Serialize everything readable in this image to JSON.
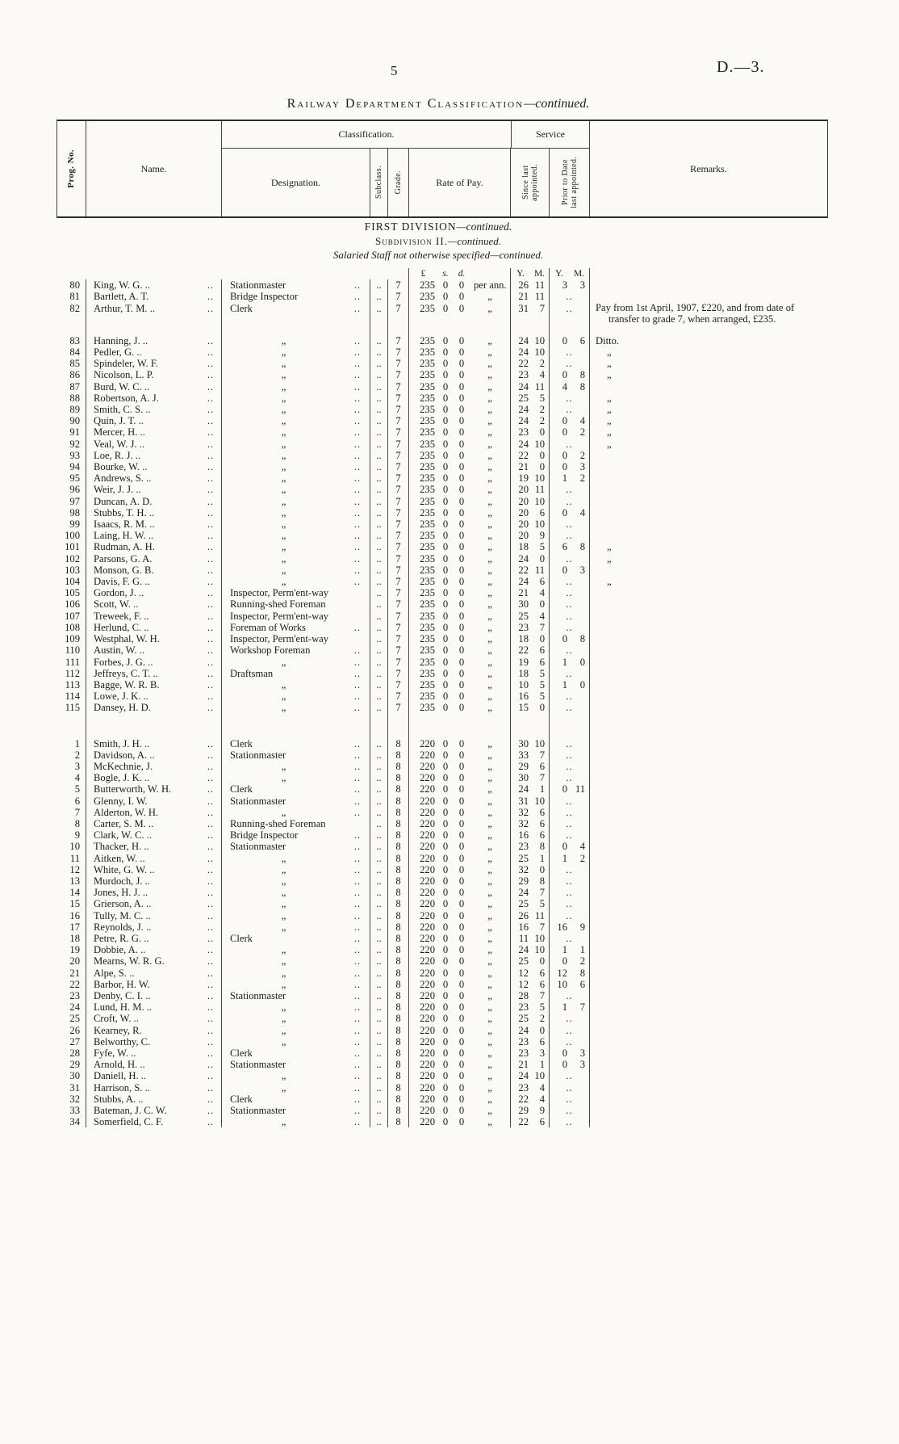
{
  "page": {
    "number": "5",
    "doc_ref": "D.—3.",
    "title_main": "Railway Department Classification",
    "title_continued": "—continued."
  },
  "table_header": {
    "prog_no": "Prog. No.",
    "name": "Name.",
    "classification": "Classification.",
    "designation": "Designation.",
    "subclass": "Subclass.",
    "grade": "Grade.",
    "rate_of_pay": "Rate of Pay.",
    "service": "Service",
    "since": "Since last appointed.",
    "prior": "Prior to Date last appointed.",
    "remarks": "Remarks."
  },
  "section": {
    "division": "FIRST DIVISION",
    "division_cont": "—continued.",
    "subdivision": "Subdivision II.",
    "subdivision_cont": "—continued.",
    "staff": "Salaried Staff not otherwise specified",
    "staff_cont": "—continued."
  },
  "units": {
    "pound": "£",
    "s": "s.",
    "d": "d.",
    "y": "Y.",
    "m": "M."
  },
  "colors": {
    "paper": "#fbfaf7",
    "ink": "#1c1c1c"
  },
  "rows_grade7": [
    {
      "prog": "80",
      "name": "King, W. G. ..",
      "designation": "Stationmaster",
      "grade": "7",
      "pay_pounds": "235",
      "pay_s": "0",
      "pay_d": "0",
      "per": "per ann.",
      "since": "26 11",
      "prior": "3 3",
      "remark": ""
    },
    {
      "prog": "81",
      "name": "Bartlett, A. T.",
      "designation": "Bridge Inspector",
      "grade": "7",
      "pay_pounds": "235",
      "pay_s": "0",
      "pay_d": "0",
      "per": "„",
      "since": "21 11",
      "prior": "..",
      "remark": ""
    },
    {
      "prog": "82",
      "name": "Arthur, T. M. ..",
      "designation": "Clerk",
      "grade": "7",
      "pay_pounds": "235",
      "pay_s": "0",
      "pay_d": "0",
      "per": "„",
      "since": "31 7",
      "prior": "..",
      "remark": "Pay from 1st April, 1907, £220, and from date of transfer to grade 7, when arranged, £235."
    },
    {
      "prog": "83",
      "name": "Hanning, J. ..",
      "designation": "„",
      "grade": "7",
      "pay_pounds": "235",
      "pay_s": "0",
      "pay_d": "0",
      "per": "„",
      "since": "24 10",
      "prior": "0 6",
      "remark": "Ditto."
    },
    {
      "prog": "84",
      "name": "Pedler, G. ..",
      "designation": "„",
      "grade": "7",
      "pay_pounds": "235",
      "pay_s": "0",
      "pay_d": "0",
      "per": "„",
      "since": "24 10",
      "prior": "..",
      "remark": "„"
    },
    {
      "prog": "85",
      "name": "Spindeler, W. F.",
      "designation": "„",
      "grade": "7",
      "pay_pounds": "235",
      "pay_s": "0",
      "pay_d": "0",
      "per": "„",
      "since": "22 2",
      "prior": "..",
      "remark": "„"
    },
    {
      "prog": "86",
      "name": "Nicolson, L. P.",
      "designation": "„",
      "grade": "7",
      "pay_pounds": "235",
      "pay_s": "0",
      "pay_d": "0",
      "per": "„",
      "since": "23 4",
      "prior": "0 8",
      "remark": "„"
    },
    {
      "prog": "87",
      "name": "Burd, W. C. ..",
      "designation": "„",
      "grade": "7",
      "pay_pounds": "235",
      "pay_s": "0",
      "pay_d": "0",
      "per": "„",
      "since": "24 11",
      "prior": "4 8",
      "remark": ""
    },
    {
      "prog": "88",
      "name": "Robertson, A. J.",
      "designation": "„",
      "grade": "7",
      "pay_pounds": "235",
      "pay_s": "0",
      "pay_d": "0",
      "per": "„",
      "since": "25 5",
      "prior": "..",
      "remark": "„"
    },
    {
      "prog": "89",
      "name": "Smith, C. S. ..",
      "designation": "„",
      "grade": "7",
      "pay_pounds": "235",
      "pay_s": "0",
      "pay_d": "0",
      "per": "„",
      "since": "24 2",
      "prior": "..",
      "remark": "„"
    },
    {
      "prog": "90",
      "name": "Quin, J. T. ..",
      "designation": "„",
      "grade": "7",
      "pay_pounds": "235",
      "pay_s": "0",
      "pay_d": "0",
      "per": "„",
      "since": "24 2",
      "prior": "0 4",
      "remark": "„"
    },
    {
      "prog": "91",
      "name": "Mercer, H. ..",
      "designation": "„",
      "grade": "7",
      "pay_pounds": "235",
      "pay_s": "0",
      "pay_d": "0",
      "per": "„",
      "since": "23 0",
      "prior": "0 2",
      "remark": "„"
    },
    {
      "prog": "92",
      "name": "Veal, W. J. ..",
      "designation": "„",
      "grade": "7",
      "pay_pounds": "235",
      "pay_s": "0",
      "pay_d": "0",
      "per": "„",
      "since": "24 10",
      "prior": "..",
      "remark": "„"
    },
    {
      "prog": "93",
      "name": "Loe, R. J. ..",
      "designation": "„",
      "grade": "7",
      "pay_pounds": "235",
      "pay_s": "0",
      "pay_d": "0",
      "per": "„",
      "since": "22 0",
      "prior": "0 2",
      "remark": ""
    },
    {
      "prog": "94",
      "name": "Bourke, W. ..",
      "designation": "„",
      "grade": "7",
      "pay_pounds": "235",
      "pay_s": "0",
      "pay_d": "0",
      "per": "„",
      "since": "21 0",
      "prior": "0 3",
      "remark": ""
    },
    {
      "prog": "95",
      "name": "Andrews, S. ..",
      "designation": "„",
      "grade": "7",
      "pay_pounds": "235",
      "pay_s": "0",
      "pay_d": "0",
      "per": "„",
      "since": "19 10",
      "prior": "1 2",
      "remark": ""
    },
    {
      "prog": "96",
      "name": "Weir, J. J. ..",
      "designation": "„",
      "grade": "7",
      "pay_pounds": "235",
      "pay_s": "0",
      "pay_d": "0",
      "per": "„",
      "since": "20 11",
      "prior": "..",
      "remark": ""
    },
    {
      "prog": "97",
      "name": "Duncan, A. D.",
      "designation": "„",
      "grade": "7",
      "pay_pounds": "235",
      "pay_s": "0",
      "pay_d": "0",
      "per": "„",
      "since": "20 10",
      "prior": "..",
      "remark": ""
    },
    {
      "prog": "98",
      "name": "Stubbs, T. H. ..",
      "designation": "„",
      "grade": "7",
      "pay_pounds": "235",
      "pay_s": "0",
      "pay_d": "0",
      "per": "„",
      "since": "20 6",
      "prior": "0 4",
      "remark": ""
    },
    {
      "prog": "99",
      "name": "Isaacs, R. M. ..",
      "designation": "„",
      "grade": "7",
      "pay_pounds": "235",
      "pay_s": "0",
      "pay_d": "0",
      "per": "„",
      "since": "20 10",
      "prior": "..",
      "remark": ""
    },
    {
      "prog": "100",
      "name": "Laing, H. W. ..",
      "designation": "„",
      "grade": "7",
      "pay_pounds": "235",
      "pay_s": "0",
      "pay_d": "0",
      "per": "„",
      "since": "20 9",
      "prior": "..",
      "remark": ""
    },
    {
      "prog": "101",
      "name": "Rudman, A. H.",
      "designation": "„",
      "grade": "7",
      "pay_pounds": "235",
      "pay_s": "0",
      "pay_d": "0",
      "per": "„",
      "since": "18 5",
      "prior": "6 8",
      "remark": "„"
    },
    {
      "prog": "102",
      "name": "Parsons, G. A.",
      "designation": "„",
      "grade": "7",
      "pay_pounds": "235",
      "pay_s": "0",
      "pay_d": "0",
      "per": "„",
      "since": "24 0",
      "prior": "..",
      "remark": "„"
    },
    {
      "prog": "103",
      "name": "Monson, G. B.",
      "designation": "„",
      "grade": "7",
      "pay_pounds": "235",
      "pay_s": "0",
      "pay_d": "0",
      "per": "„",
      "since": "22 11",
      "prior": "0 3",
      "remark": ""
    },
    {
      "prog": "104",
      "name": "Davis, F. G. ..",
      "designation": "„",
      "grade": "7",
      "pay_pounds": "235",
      "pay_s": "0",
      "pay_d": "0",
      "per": "„",
      "since": "24 6",
      "prior": "..",
      "remark": "„"
    },
    {
      "prog": "105",
      "name": "Gordon, J. ..",
      "designation": "Inspector, Perm'ent-way",
      "grade": "7",
      "pay_pounds": "235",
      "pay_s": "0",
      "pay_d": "0",
      "per": "„",
      "since": "21 4",
      "prior": "..",
      "remark": ""
    },
    {
      "prog": "106",
      "name": "Scott, W. ..",
      "designation": "Running-shed Foreman",
      "grade": "7",
      "pay_pounds": "235",
      "pay_s": "0",
      "pay_d": "0",
      "per": "„",
      "since": "30 0",
      "prior": "..",
      "remark": ""
    },
    {
      "prog": "107",
      "name": "Treweek, F. ..",
      "designation": "Inspector, Perm'ent-way",
      "grade": "7",
      "pay_pounds": "235",
      "pay_s": "0",
      "pay_d": "0",
      "per": "„",
      "since": "25 4",
      "prior": "..",
      "remark": ""
    },
    {
      "prog": "108",
      "name": "Herlund, C. ..",
      "designation": "Foreman of Works",
      "grade": "7",
      "pay_pounds": "235",
      "pay_s": "0",
      "pay_d": "0",
      "per": "„",
      "since": "23 7",
      "prior": "..",
      "remark": ""
    },
    {
      "prog": "109",
      "name": "Westphal, W. H.",
      "designation": "Inspector, Perm'ent-way",
      "grade": "7",
      "pay_pounds": "235",
      "pay_s": "0",
      "pay_d": "0",
      "per": "„",
      "since": "18 0",
      "prior": "0 8",
      "remark": ""
    },
    {
      "prog": "110",
      "name": "Austin, W. ..",
      "designation": "Workshop Foreman",
      "grade": "7",
      "pay_pounds": "235",
      "pay_s": "0",
      "pay_d": "0",
      "per": "„",
      "since": "22 6",
      "prior": "..",
      "remark": ""
    },
    {
      "prog": "111",
      "name": "Forbes, J. G. ..",
      "designation": "„",
      "grade": "7",
      "pay_pounds": "235",
      "pay_s": "0",
      "pay_d": "0",
      "per": "„",
      "since": "19 6",
      "prior": "1 0",
      "remark": ""
    },
    {
      "prog": "112",
      "name": "Jeffreys, C. T. ..",
      "designation": "Draftsman",
      "grade": "7",
      "pay_pounds": "235",
      "pay_s": "0",
      "pay_d": "0",
      "per": "„",
      "since": "18 5",
      "prior": "..",
      "remark": ""
    },
    {
      "prog": "113",
      "name": "Bagge, W. R. B.",
      "designation": "„",
      "grade": "7",
      "pay_pounds": "235",
      "pay_s": "0",
      "pay_d": "0",
      "per": "„",
      "since": "10 5",
      "prior": "1 0",
      "remark": ""
    },
    {
      "prog": "114",
      "name": "Lowe, J. K. ..",
      "designation": "„",
      "grade": "7",
      "pay_pounds": "235",
      "pay_s": "0",
      "pay_d": "0",
      "per": "„",
      "since": "16 5",
      "prior": "..",
      "remark": ""
    },
    {
      "prog": "115",
      "name": "Dansey, H. D.",
      "designation": "„",
      "grade": "7",
      "pay_pounds": "235",
      "pay_s": "0",
      "pay_d": "0",
      "per": "„",
      "since": "15 0",
      "prior": "..",
      "remark": ""
    }
  ],
  "rows_grade8": [
    {
      "prog": "1",
      "name": "Smith, J. H. ..",
      "designation": "Clerk",
      "grade": "8",
      "pay_pounds": "220",
      "pay_s": "0",
      "pay_d": "0",
      "per": "„",
      "since": "30 10",
      "prior": "..",
      "remark": ""
    },
    {
      "prog": "2",
      "name": "Davidson, A. ..",
      "designation": "Stationmaster",
      "grade": "8",
      "pay_pounds": "220",
      "pay_s": "0",
      "pay_d": "0",
      "per": "„",
      "since": "33 7",
      "prior": "..",
      "remark": ""
    },
    {
      "prog": "3",
      "name": "McKechnie, J.",
      "designation": "„",
      "grade": "8",
      "pay_pounds": "220",
      "pay_s": "0",
      "pay_d": "0",
      "per": "„",
      "since": "29 6",
      "prior": "..",
      "remark": ""
    },
    {
      "prog": "4",
      "name": "Bogle, J. K. ..",
      "designation": "„",
      "grade": "8",
      "pay_pounds": "220",
      "pay_s": "0",
      "pay_d": "0",
      "per": "„",
      "since": "30 7",
      "prior": "..",
      "remark": ""
    },
    {
      "prog": "5",
      "name": "Butterworth, W. H.",
      "designation": "Clerk",
      "grade": "8",
      "pay_pounds": "220",
      "pay_s": "0",
      "pay_d": "0",
      "per": "„",
      "since": "24 1",
      "prior": "0 11",
      "remark": ""
    },
    {
      "prog": "6",
      "name": "Glenny, I. W.",
      "designation": "Stationmaster",
      "grade": "8",
      "pay_pounds": "220",
      "pay_s": "0",
      "pay_d": "0",
      "per": "„",
      "since": "31 10",
      "prior": "..",
      "remark": ""
    },
    {
      "prog": "7",
      "name": "Alderton, W. H.",
      "designation": "„",
      "grade": "8",
      "pay_pounds": "220",
      "pay_s": "0",
      "pay_d": "0",
      "per": "„",
      "since": "32 6",
      "prior": "..",
      "remark": ""
    },
    {
      "prog": "8",
      "name": "Carter, S. M. ..",
      "designation": "Running-shed Foreman",
      "grade": "8",
      "pay_pounds": "220",
      "pay_s": "0",
      "pay_d": "0",
      "per": "„",
      "since": "32 6",
      "prior": "..",
      "remark": ""
    },
    {
      "prog": "9",
      "name": "Clark, W. C. ..",
      "designation": "Bridge Inspector",
      "grade": "8",
      "pay_pounds": "220",
      "pay_s": "0",
      "pay_d": "0",
      "per": "„",
      "since": "16 6",
      "prior": "..",
      "remark": ""
    },
    {
      "prog": "10",
      "name": "Thacker, H. ..",
      "designation": "Stationmaster",
      "grade": "8",
      "pay_pounds": "220",
      "pay_s": "0",
      "pay_d": "0",
      "per": "„",
      "since": "23 8",
      "prior": "0 4",
      "remark": ""
    },
    {
      "prog": "11",
      "name": "Aitken, W. ..",
      "designation": "„",
      "grade": "8",
      "pay_pounds": "220",
      "pay_s": "0",
      "pay_d": "0",
      "per": "„",
      "since": "25 1",
      "prior": "1 2",
      "remark": ""
    },
    {
      "prog": "12",
      "name": "White, G. W. ..",
      "designation": "„",
      "grade": "8",
      "pay_pounds": "220",
      "pay_s": "0",
      "pay_d": "0",
      "per": "„",
      "since": "32 0",
      "prior": "..",
      "remark": ""
    },
    {
      "prog": "13",
      "name": "Murdoch, J. ..",
      "designation": "„",
      "grade": "8",
      "pay_pounds": "220",
      "pay_s": "0",
      "pay_d": "0",
      "per": "„",
      "since": "29 8",
      "prior": "..",
      "remark": ""
    },
    {
      "prog": "14",
      "name": "Jones, H. J. ..",
      "designation": "„",
      "grade": "8",
      "pay_pounds": "220",
      "pay_s": "0",
      "pay_d": "0",
      "per": "„",
      "since": "24 7",
      "prior": "..",
      "remark": ""
    },
    {
      "prog": "15",
      "name": "Grierson, A. ..",
      "designation": "„",
      "grade": "8",
      "pay_pounds": "220",
      "pay_s": "0",
      "pay_d": "0",
      "per": "„",
      "since": "25 5",
      "prior": "..",
      "remark": ""
    },
    {
      "prog": "16",
      "name": "Tully, M. C. ..",
      "designation": "„",
      "grade": "8",
      "pay_pounds": "220",
      "pay_s": "0",
      "pay_d": "0",
      "per": "„",
      "since": "26 11",
      "prior": "..",
      "remark": ""
    },
    {
      "prog": "17",
      "name": "Reynolds, J. ..",
      "designation": "„",
      "grade": "8",
      "pay_pounds": "220",
      "pay_s": "0",
      "pay_d": "0",
      "per": "„",
      "since": "16 7",
      "prior": "16 9",
      "remark": ""
    },
    {
      "prog": "18",
      "name": "Petre, R. G. ..",
      "designation": "Clerk",
      "grade": "8",
      "pay_pounds": "220",
      "pay_s": "0",
      "pay_d": "0",
      "per": "„",
      "since": "11 10",
      "prior": "..",
      "remark": ""
    },
    {
      "prog": "19",
      "name": "Dobbie, A. ..",
      "designation": "„",
      "grade": "8",
      "pay_pounds": "220",
      "pay_s": "0",
      "pay_d": "0",
      "per": "„",
      "since": "24 10",
      "prior": "1 1",
      "remark": ""
    },
    {
      "prog": "20",
      "name": "Mearns, W. R. G.",
      "designation": "„",
      "grade": "8",
      "pay_pounds": "220",
      "pay_s": "0",
      "pay_d": "0",
      "per": "„",
      "since": "25 0",
      "prior": "0 2",
      "remark": ""
    },
    {
      "prog": "21",
      "name": "Alpe, S. ..",
      "designation": "„",
      "grade": "8",
      "pay_pounds": "220",
      "pay_s": "0",
      "pay_d": "0",
      "per": "„",
      "since": "12 6",
      "prior": "12 8",
      "remark": ""
    },
    {
      "prog": "22",
      "name": "Barbor, H. W.",
      "designation": "„",
      "grade": "8",
      "pay_pounds": "220",
      "pay_s": "0",
      "pay_d": "0",
      "per": "„",
      "since": "12 6",
      "prior": "10 6",
      "remark": ""
    },
    {
      "prog": "23",
      "name": "Denby, C. I. ..",
      "designation": "Stationmaster",
      "grade": "8",
      "pay_pounds": "220",
      "pay_s": "0",
      "pay_d": "0",
      "per": "„",
      "since": "28 7",
      "prior": "..",
      "remark": ""
    },
    {
      "prog": "24",
      "name": "Lund, H. M. ..",
      "designation": "„",
      "grade": "8",
      "pay_pounds": "220",
      "pay_s": "0",
      "pay_d": "0",
      "per": "„",
      "since": "23 5",
      "prior": "1 7",
      "remark": ""
    },
    {
      "prog": "25",
      "name": "Croft, W. ..",
      "designation": "„",
      "grade": "8",
      "pay_pounds": "220",
      "pay_s": "0",
      "pay_d": "0",
      "per": "„",
      "since": "25 2",
      "prior": "..",
      "remark": ""
    },
    {
      "prog": "26",
      "name": "Kearney, R.",
      "designation": "„",
      "grade": "8",
      "pay_pounds": "220",
      "pay_s": "0",
      "pay_d": "0",
      "per": "„",
      "since": "24 0",
      "prior": "..",
      "remark": ""
    },
    {
      "prog": "27",
      "name": "Belworthy, C.",
      "designation": "„",
      "grade": "8",
      "pay_pounds": "220",
      "pay_s": "0",
      "pay_d": "0",
      "per": "„",
      "since": "23 6",
      "prior": "..",
      "remark": ""
    },
    {
      "prog": "28",
      "name": "Fyfe, W. ..",
      "designation": "Clerk",
      "grade": "8",
      "pay_pounds": "220",
      "pay_s": "0",
      "pay_d": "0",
      "per": "„",
      "since": "23 3",
      "prior": "0 3",
      "remark": ""
    },
    {
      "prog": "29",
      "name": "Arnold, H. ..",
      "designation": "Stationmaster",
      "grade": "8",
      "pay_pounds": "220",
      "pay_s": "0",
      "pay_d": "0",
      "per": "„",
      "since": "21 1",
      "prior": "0 3",
      "remark": ""
    },
    {
      "prog": "30",
      "name": "Daniell, H. ..",
      "designation": "„",
      "grade": "8",
      "pay_pounds": "220",
      "pay_s": "0",
      "pay_d": "0",
      "per": "„",
      "since": "24 10",
      "prior": "..",
      "remark": ""
    },
    {
      "prog": "31",
      "name": "Harrison, S. ..",
      "designation": "„",
      "grade": "8",
      "pay_pounds": "220",
      "pay_s": "0",
      "pay_d": "0",
      "per": "„",
      "since": "23 4",
      "prior": "..",
      "remark": ""
    },
    {
      "prog": "32",
      "name": "Stubbs, A. ..",
      "designation": "Clerk",
      "grade": "8",
      "pay_pounds": "220",
      "pay_s": "0",
      "pay_d": "0",
      "per": "„",
      "since": "22 4",
      "prior": "..",
      "remark": ""
    },
    {
      "prog": "33",
      "name": "Bateman, J. C. W.",
      "designation": "Stationmaster",
      "grade": "8",
      "pay_pounds": "220",
      "pay_s": "0",
      "pay_d": "0",
      "per": "„",
      "since": "29 9",
      "prior": "..",
      "remark": ""
    },
    {
      "prog": "34",
      "name": "Somerfield, C. F.",
      "designation": "„",
      "grade": "8",
      "pay_pounds": "220",
      "pay_s": "0",
      "pay_d": "0",
      "per": "„",
      "since": "22 6",
      "prior": "..",
      "remark": ""
    }
  ]
}
